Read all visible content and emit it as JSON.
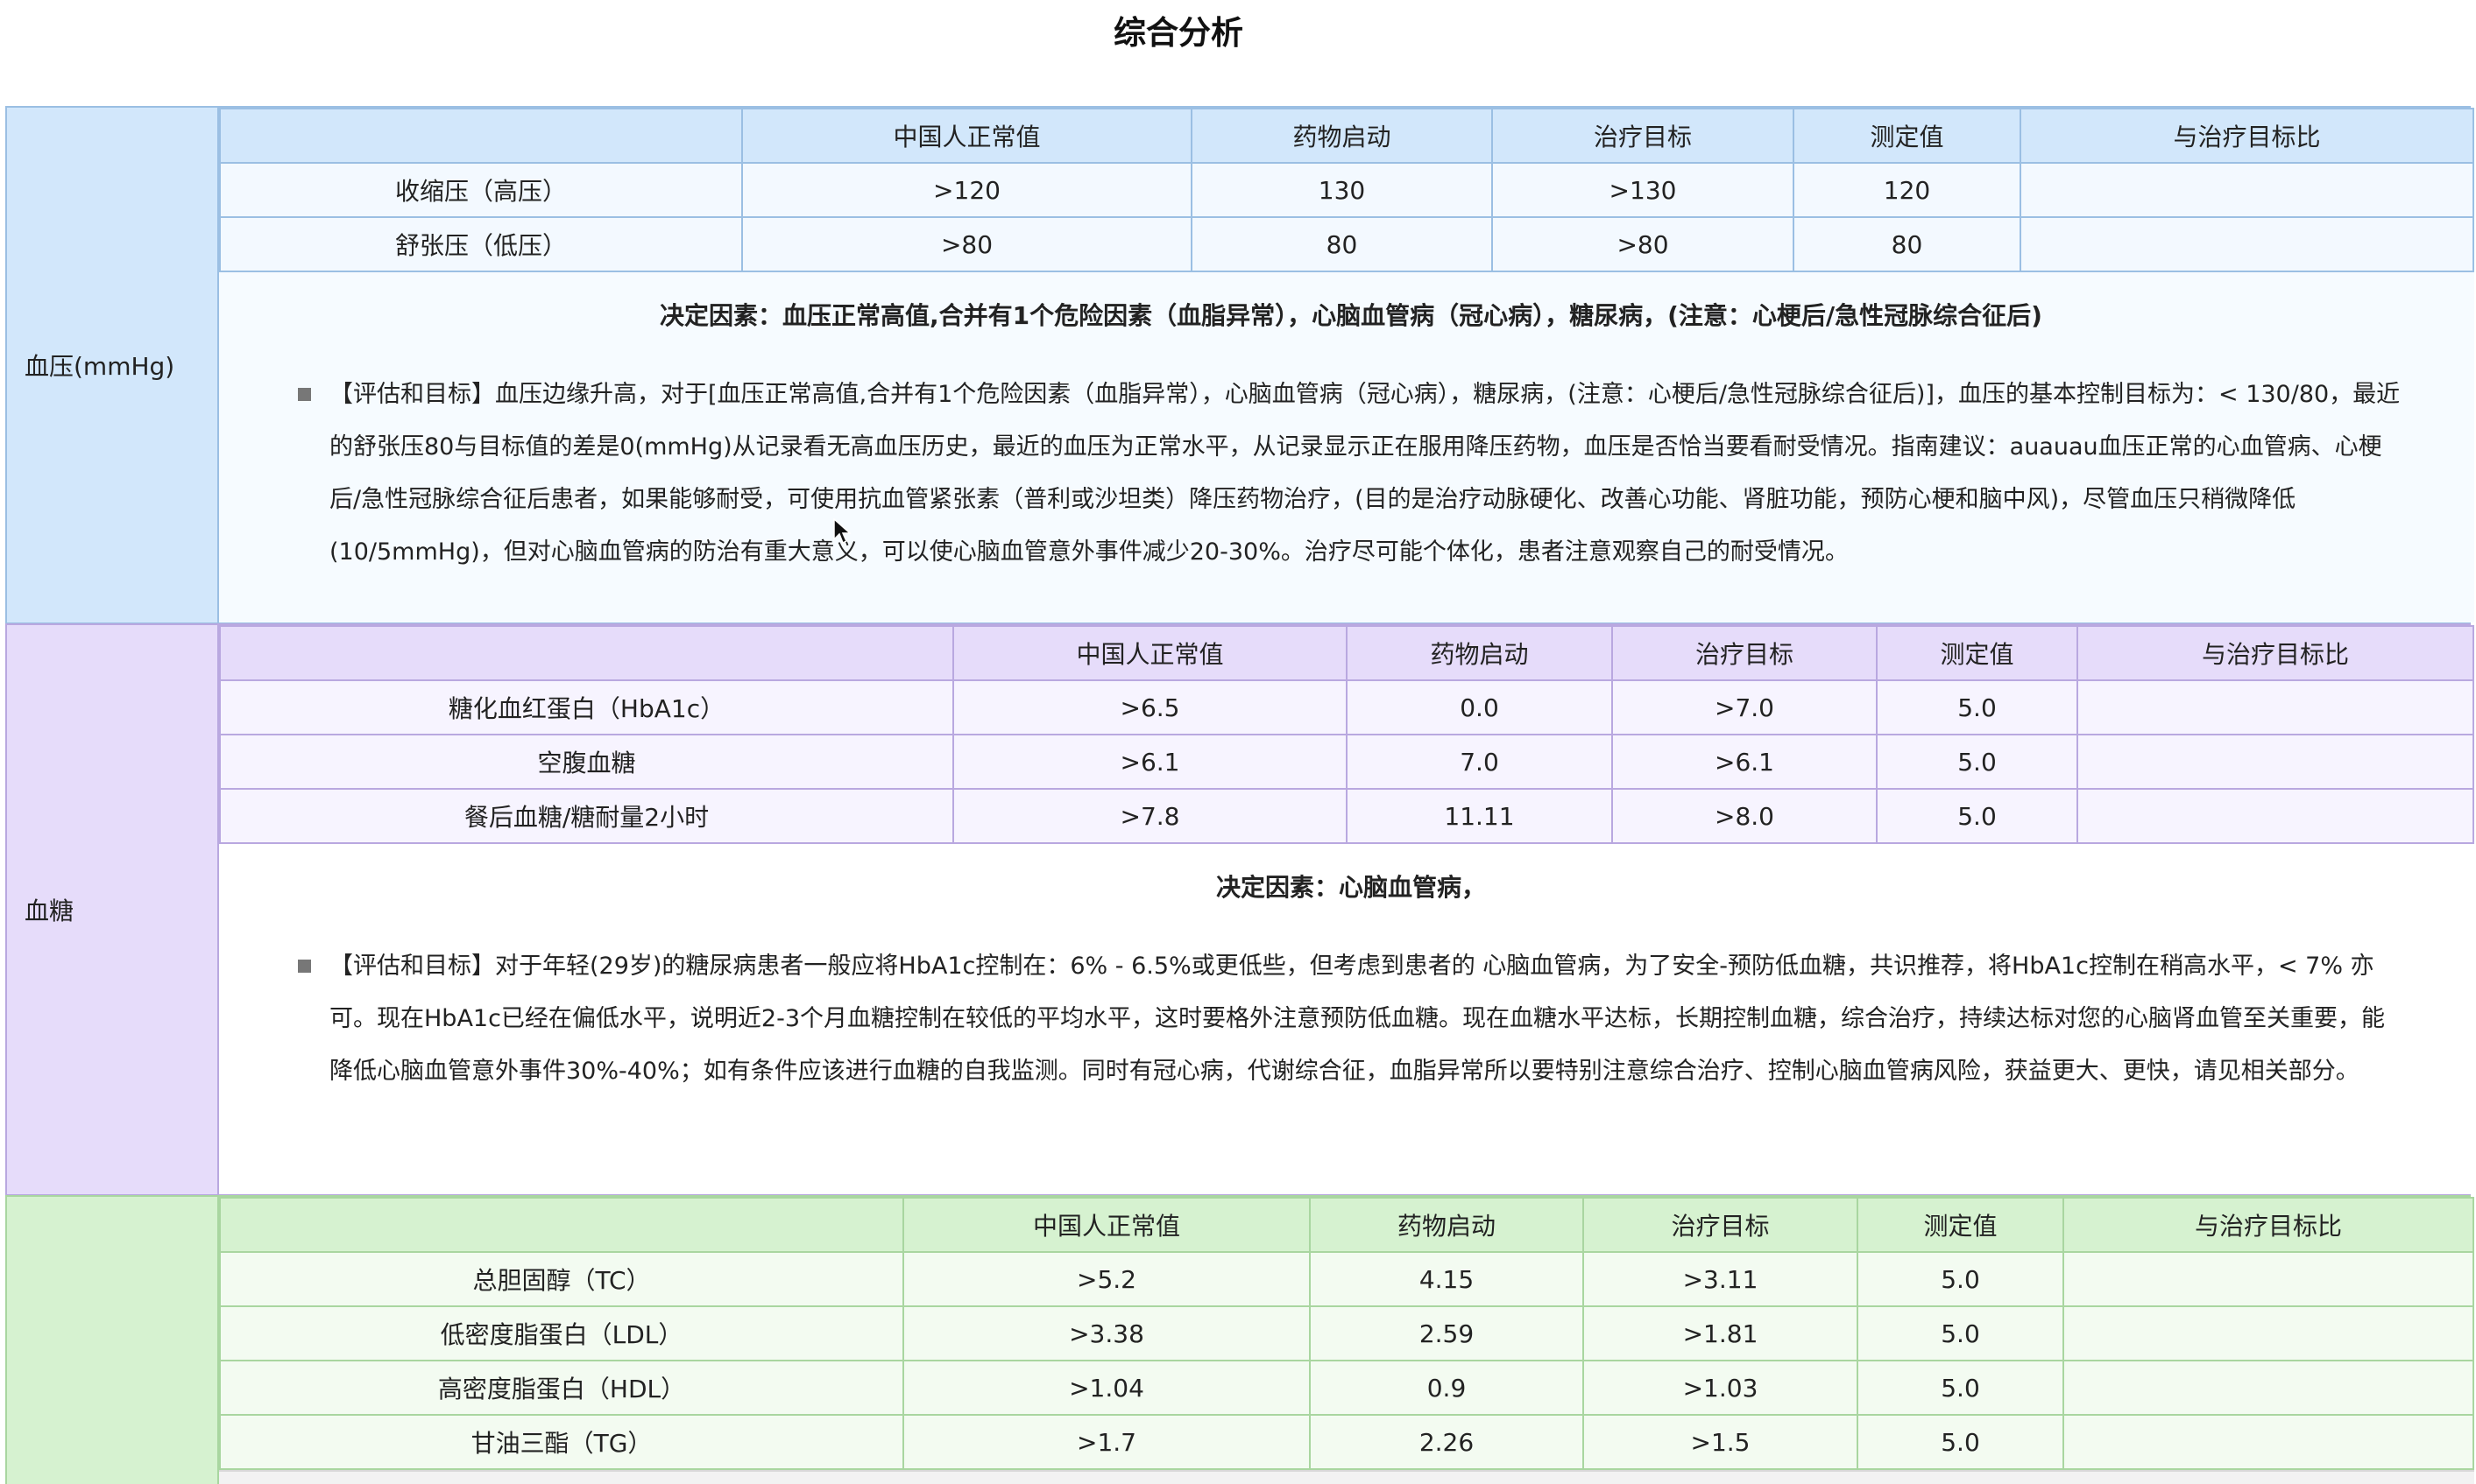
{
  "page": {
    "title": "综合分析"
  },
  "blood_pressure": {
    "label": "血压(mmHg)",
    "headers": [
      "",
      "中国人正常值",
      "药物启动",
      "治疗目标",
      "测定值",
      "与治疗目标比"
    ],
    "rows": [
      [
        "收缩压（高压）",
        ">120",
        "130",
        ">130",
        "120",
        ""
      ],
      [
        "舒张压（低压）",
        ">80",
        "80",
        ">80",
        "80",
        ""
      ]
    ],
    "factor": "决定因素：血压正常高值,合并有1个危险因素（血脂异常），心脑血管病（冠心病），糖尿病，(注意：心梗后/急性冠脉综合征后)",
    "assessment": "【评估和目标】血压边缘升高，对于[血压正常高值,合并有1个危险因素（血脂异常），心脑血管病（冠心病），糖尿病，(注意：心梗后/急性冠脉综合征后)]，血压的基本控制目标为：< 130/80，最近的舒张压80与目标值的差是0(mmHg)从记录看无高血压历史，最近的血压为正常水平，从记录显示正在服用降压药物，血压是否恰当要看耐受情况。指南建议：auauau血压正常的心血管病、心梗后/急性冠脉综合征后患者，如果能够耐受，可使用抗血管紧张素（普利或沙坦类）降压药物治疗，(目的是治疗动脉硬化、改善心功能、肾脏功能，预防心梗和脑中风)，尽管血压只稍微降低(10/5mmHg)，但对心脑血管病的防治有重大意义，可以使心脑血管意外事件减少20-30%。治疗尽可能个体化，患者注意观察自己的耐受情况。"
  },
  "blood_sugar": {
    "label": "血糖",
    "headers": [
      "",
      "中国人正常值",
      "药物启动",
      "治疗目标",
      "测定值",
      "与治疗目标比"
    ],
    "rows": [
      [
        "糖化血红蛋白（HbA1c）",
        ">6.5",
        "0.0",
        ">7.0",
        "5.0",
        ""
      ],
      [
        "空腹血糖",
        ">6.1",
        "7.0",
        ">6.1",
        "5.0",
        ""
      ],
      [
        "餐后血糖/糖耐量2小时",
        ">7.8",
        "11.11",
        ">8.0",
        "5.0",
        ""
      ]
    ],
    "factor": "决定因素：心脑血管病，",
    "assessment": "【评估和目标】对于年轻(29岁)的糖尿病患者一般应将HbA1c控制在：6% - 6.5%或更低些，但考虑到患者的 心脑血管病，为了安全-预防低血糖，共识推荐，将HbA1c控制在稍高水平，< 7% 亦可。现在HbA1c已经在偏低水平，说明近2-3个月血糖控制在较低的平均水平，这时要格外注意预防低血糖。现在血糖水平达标，长期控制血糖，综合治疗，持续达标对您的心脑肾血管至关重要，能降低心脑血管意外事件30%-40%；如有条件应该进行血糖的自我监测。同时有冠心病，代谢综合征，血脂异常所以要特别注意综合治疗、控制心脑血管病风险，获益更大、更快，请见相关部分。"
  },
  "lipids": {
    "label": "",
    "headers": [
      "",
      "中国人正常值",
      "药物启动",
      "治疗目标",
      "测定值",
      "与治疗目标比"
    ],
    "rows": [
      [
        "总胆固醇（TC）",
        ">5.2",
        "4.15",
        ">3.11",
        "5.0",
        ""
      ],
      [
        "低密度脂蛋白（LDL）",
        ">3.38",
        "2.59",
        ">1.81",
        "5.0",
        ""
      ],
      [
        "高密度脂蛋白（HDL）",
        ">1.04",
        "0.9",
        ">1.03",
        "5.0",
        ""
      ],
      [
        "甘油三酯（TG）",
        ">1.7",
        "2.26",
        ">1.5",
        "5.0",
        ""
      ]
    ]
  },
  "icons": {
    "cursor": "mouse-pointer-icon"
  }
}
